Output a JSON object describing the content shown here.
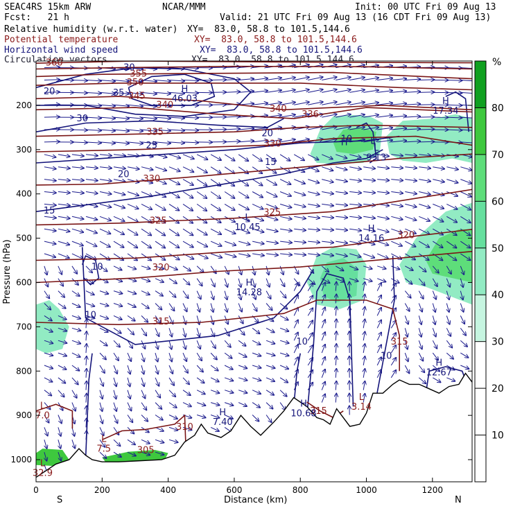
{
  "header": {
    "title_left": "SEAC4RS 15km ARW",
    "title_center": "NCAR/MMM",
    "init": "Init: 00 UTC Fri 09 Aug 13",
    "fcst": "Fcst:   21 h",
    "valid": "Valid: 21 UTC Fri 09 Aug 13 (16 CDT Fri 09 Aug 13)",
    "fields": [
      {
        "name": "Relative humidity (w.r.t. water)",
        "xy": "XY=  83.0, 58.8 to 101.5,144.6",
        "color": "#000000"
      },
      {
        "name": "Potential temperature",
        "xy": "XY=  83.0, 58.8 to 101.5,144.6",
        "color": "#8a1a1a"
      },
      {
        "name": "Horizontal wind speed",
        "xy": "XY=  83.0, 58.8 to 101.5,144.6",
        "color": "#14147a"
      },
      {
        "name": "Circulation vectors",
        "xy": "XY=  83.0, 58.8 to 101.5,144.6",
        "color": "#223344"
      }
    ]
  },
  "chart_data": {
    "type": "cross-section",
    "xlabel": "Distance (km)",
    "ylabel": "Pressure (hPa)",
    "xlim": [
      0,
      1320
    ],
    "ylim": [
      1050,
      100
    ],
    "x_ticks": [
      0,
      200,
      400,
      600,
      800,
      1000,
      1200
    ],
    "y_ticks": [
      200,
      300,
      400,
      500,
      600,
      700,
      800,
      900,
      1000
    ],
    "end_labels": {
      "left": "S",
      "right": "N"
    },
    "colorbar": {
      "unit": "%",
      "ticks": [
        10,
        20,
        30,
        40,
        50,
        60,
        70,
        80
      ],
      "range": [
        0,
        90
      ],
      "colors": [
        {
          "from": 0,
          "to": 30,
          "color": "#ffffff"
        },
        {
          "from": 30,
          "to": 40,
          "color": "#c6f5e0"
        },
        {
          "from": 40,
          "to": 50,
          "color": "#92ebc3"
        },
        {
          "from": 50,
          "to": 60,
          "color": "#66df9e"
        },
        {
          "from": 60,
          "to": 70,
          "color": "#5edd7a"
        },
        {
          "from": 70,
          "to": 80,
          "color": "#3ec83e"
        },
        {
          "from": 80,
          "to": 90,
          "color": "#10a020"
        }
      ]
    },
    "theta_labels": [
      {
        "text": "360",
        "x": 55,
        "p": 110
      },
      {
        "text": "355",
        "x": 310,
        "p": 135
      },
      {
        "text": "350",
        "x": 300,
        "p": 155
      },
      {
        "text": "345",
        "x": 305,
        "p": 185
      },
      {
        "text": "340",
        "x": 390,
        "p": 206
      },
      {
        "text": "335",
        "x": 360,
        "p": 267
      },
      {
        "text": "330",
        "x": 350,
        "p": 372
      },
      {
        "text": "325",
        "x": 370,
        "p": 467
      },
      {
        "text": "320",
        "x": 378,
        "p": 573
      },
      {
        "text": "315",
        "x": 378,
        "p": 695
      },
      {
        "text": "310",
        "x": 450,
        "p": 933
      },
      {
        "text": "305",
        "x": 332,
        "p": 985
      },
      {
        "text": "336",
        "x": 830,
        "p": 227
      },
      {
        "text": "330",
        "x": 716,
        "p": 293
      },
      {
        "text": "325",
        "x": 715,
        "p": 448
      },
      {
        "text": "320",
        "x": 1120,
        "p": 500
      },
      {
        "text": "315",
        "x": 1100,
        "p": 740
      },
      {
        "text": "315",
        "x": 855,
        "p": 897
      },
      {
        "text": "340",
        "x": 733,
        "p": 214
      }
    ],
    "wind_labels": [
      {
        "text": "20",
        "x": 40,
        "p": 175
      },
      {
        "text": "30",
        "x": 282,
        "p": 121
      },
      {
        "text": "35",
        "x": 250,
        "p": 178
      },
      {
        "text": "30",
        "x": 140,
        "p": 236
      },
      {
        "text": "25",
        "x": 350,
        "p": 297
      },
      {
        "text": "20",
        "x": 265,
        "p": 362
      },
      {
        "text": "15",
        "x": 40,
        "p": 444
      },
      {
        "text": "15",
        "x": 710,
        "p": 335
      },
      {
        "text": "20",
        "x": 700,
        "p": 270
      },
      {
        "text": "10",
        "x": 185,
        "p": 571
      },
      {
        "text": "10",
        "x": 165,
        "p": 680
      },
      {
        "text": "10",
        "x": 805,
        "p": 740
      },
      {
        "text": "10",
        "x": 1060,
        "p": 772
      },
      {
        "text": "10",
        "x": 940,
        "p": 282
      }
    ],
    "extrema": [
      {
        "kind": "H",
        "value": "46.03",
        "x": 450,
        "p": 170
      },
      {
        "kind": "H",
        "value": "14.28",
        "x": 645,
        "p": 607
      },
      {
        "kind": "H",
        "value": "14.16",
        "x": 1015,
        "p": 485
      },
      {
        "kind": "H",
        "value": "17.34",
        "x": 1240,
        "p": 197
      },
      {
        "kind": "H",
        "value": "12.67",
        "x": 1220,
        "p": 788
      },
      {
        "kind": "H",
        "value": "10.68",
        "x": 810,
        "p": 880
      },
      {
        "kind": "H",
        "value": "7.40",
        "x": 565,
        "p": 900
      },
      {
        "kind": "L",
        "value": "10.45",
        "x": 640,
        "p": 460
      },
      {
        "kind": "L",
        "value": "9.13",
        "x": 1030,
        "p": 303
      },
      {
        "kind": "L",
        "value": "3.14",
        "x": 985,
        "p": 865
      },
      {
        "kind": "L",
        "value": "7.0",
        "x": 20,
        "p": 885
      },
      {
        "kind": "L",
        "value": "7.5",
        "x": 205,
        "p": 960
      },
      {
        "kind": "L",
        "value": "32.9",
        "x": 20,
        "p": 1015
      },
      {
        "kind": "H",
        "value": "",
        "x": 933,
        "p": 290
      },
      {
        "kind": "L",
        "value": "",
        "x": 1020,
        "p": 287
      }
    ],
    "humidity_regions": [
      {
        "level": 40,
        "pts": [
          [
            830,
            310
          ],
          [
            860,
            255
          ],
          [
            900,
            225
          ],
          [
            960,
            222
          ],
          [
            1010,
            225
          ],
          [
            1050,
            240
          ],
          [
            1040,
            310
          ],
          [
            990,
            330
          ],
          [
            900,
            332
          ],
          [
            850,
            330
          ]
        ]
      },
      {
        "level": 60,
        "pts": [
          [
            900,
            285
          ],
          [
            930,
            255
          ],
          [
            980,
            250
          ],
          [
            1030,
            260
          ],
          [
            1020,
            300
          ],
          [
            960,
            310
          ],
          [
            910,
            305
          ]
        ]
      },
      {
        "level": 40,
        "pts": [
          [
            1060,
            270
          ],
          [
            1110,
            235
          ],
          [
            1200,
            230
          ],
          [
            1270,
            220
          ],
          [
            1320,
            230
          ],
          [
            1320,
            330
          ],
          [
            1260,
            320
          ],
          [
            1180,
            330
          ],
          [
            1110,
            325
          ],
          [
            1070,
            310
          ]
        ]
      },
      {
        "level": 40,
        "pts": [
          [
            820,
            600
          ],
          [
            850,
            540
          ],
          [
            900,
            520
          ],
          [
            970,
            525
          ],
          [
            1000,
            560
          ],
          [
            990,
            640
          ],
          [
            920,
            660
          ],
          [
            850,
            650
          ]
        ]
      },
      {
        "level": 50,
        "pts": [
          [
            860,
            590
          ],
          [
            880,
            555
          ],
          [
            930,
            545
          ],
          [
            975,
            570
          ],
          [
            970,
            630
          ],
          [
            910,
            645
          ],
          [
            870,
            630
          ]
        ]
      },
      {
        "level": 40,
        "pts": [
          [
            1100,
            560
          ],
          [
            1150,
            500
          ],
          [
            1240,
            440
          ],
          [
            1320,
            420
          ],
          [
            1320,
            650
          ],
          [
            1250,
            630
          ],
          [
            1180,
            610
          ],
          [
            1120,
            600
          ]
        ]
      },
      {
        "level": 60,
        "pts": [
          [
            1180,
            550
          ],
          [
            1220,
            500
          ],
          [
            1280,
            480
          ],
          [
            1320,
            480
          ],
          [
            1320,
            600
          ],
          [
            1260,
            590
          ],
          [
            1200,
            580
          ]
        ]
      },
      {
        "level": 40,
        "pts": [
          [
            0,
            650
          ],
          [
            40,
            640
          ],
          [
            70,
            660
          ],
          [
            100,
            700
          ],
          [
            80,
            750
          ],
          [
            30,
            760
          ],
          [
            0,
            750
          ]
        ]
      },
      {
        "level": 70,
        "pts": [
          [
            0,
            985
          ],
          [
            20,
            975
          ],
          [
            80,
            978
          ],
          [
            100,
            1000
          ],
          [
            70,
            1015
          ],
          [
            0,
            1012
          ]
        ]
      },
      {
        "level": 70,
        "pts": [
          [
            200,
            995
          ],
          [
            280,
            982
          ],
          [
            360,
            978
          ],
          [
            400,
            985
          ],
          [
            390,
            1000
          ],
          [
            300,
            1005
          ],
          [
            210,
            1005
          ]
        ]
      }
    ]
  }
}
